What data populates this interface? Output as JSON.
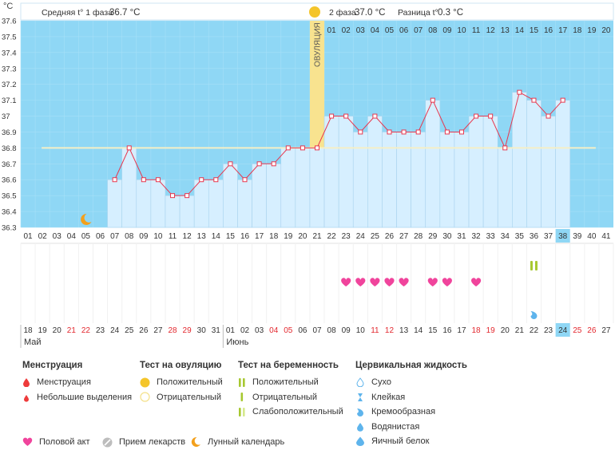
{
  "colors": {
    "plot_bg": "#8fd7f5",
    "bar_fill": "#d6efff",
    "bar_stroke": "#a9d3ee",
    "line": "#e8384f",
    "coverline": "#f5efc6",
    "ovulation_band": "#f8e38f",
    "highlight": "#8fd7f5",
    "weekend": "#e3282f",
    "heart": "#f0449c",
    "lh_positive": "#f4c52b",
    "preg_positive": "#a7c831",
    "preg_faint": "#d5e88c",
    "moon": "#f3a01c",
    "fluid": "#5eb4ec",
    "menstruation": "#ee3b3b"
  },
  "header": {
    "phase1_label": "Средняя t° 1 фаза",
    "phase1_value": "36.7 °C",
    "phase2_label": "2 фаза",
    "phase2_value": "37.0 °C",
    "diff_label": "Разница t°",
    "diff_value": "0.3 °C"
  },
  "chart_data": {
    "type": "line",
    "y_unit": "°C",
    "ylim": [
      36.3,
      37.6
    ],
    "y_ticks": [
      "37.6",
      "37.5",
      "37.4",
      "37.3",
      "37.2",
      "37.1",
      "37",
      "36.9",
      "36.8",
      "36.7",
      "36.6",
      "36.5",
      "36.4",
      "36.3"
    ],
    "coverline": 36.8,
    "ovulation_label": "ОВУЛЯЦИЯ",
    "ovulation_day": 21,
    "highlight_day": 38,
    "total_days": 41,
    "luteal_day_labels": [
      "01",
      "02",
      "03",
      "04",
      "05",
      "06",
      "07",
      "08",
      "09",
      "10",
      "11",
      "12",
      "13",
      "14",
      "15",
      "16",
      "17",
      "18",
      "19",
      "20"
    ],
    "cycle_day_labels": [
      "01",
      "02",
      "03",
      "04",
      "05",
      "06",
      "07",
      "08",
      "09",
      "10",
      "11",
      "12",
      "13",
      "14",
      "15",
      "16",
      "17",
      "18",
      "19",
      "20",
      "21",
      "22",
      "23",
      "24",
      "25",
      "26",
      "27",
      "28",
      "29",
      "30",
      "31",
      "32",
      "33",
      "34",
      "35",
      "36",
      "37",
      "38",
      "39",
      "40",
      "41"
    ],
    "calendar_days": [
      {
        "d": "18",
        "w": false
      },
      {
        "d": "19",
        "w": false
      },
      {
        "d": "20",
        "w": false
      },
      {
        "d": "21",
        "w": true
      },
      {
        "d": "22",
        "w": true
      },
      {
        "d": "23",
        "w": false
      },
      {
        "d": "24",
        "w": false
      },
      {
        "d": "25",
        "w": false
      },
      {
        "d": "26",
        "w": false
      },
      {
        "d": "27",
        "w": false
      },
      {
        "d": "28",
        "w": true
      },
      {
        "d": "29",
        "w": true
      },
      {
        "d": "30",
        "w": false
      },
      {
        "d": "31",
        "w": false
      },
      {
        "d": "01",
        "w": false
      },
      {
        "d": "02",
        "w": false
      },
      {
        "d": "03",
        "w": false
      },
      {
        "d": "04",
        "w": true
      },
      {
        "d": "05",
        "w": true
      },
      {
        "d": "06",
        "w": false
      },
      {
        "d": "07",
        "w": false
      },
      {
        "d": "08",
        "w": false
      },
      {
        "d": "09",
        "w": false
      },
      {
        "d": "10",
        "w": false
      },
      {
        "d": "11",
        "w": true
      },
      {
        "d": "12",
        "w": true
      },
      {
        "d": "13",
        "w": false
      },
      {
        "d": "14",
        "w": false
      },
      {
        "d": "15",
        "w": false
      },
      {
        "d": "16",
        "w": false
      },
      {
        "d": "17",
        "w": false
      },
      {
        "d": "18",
        "w": true
      },
      {
        "d": "19",
        "w": true
      },
      {
        "d": "20",
        "w": false
      },
      {
        "d": "21",
        "w": false
      },
      {
        "d": "22",
        "w": false
      },
      {
        "d": "23",
        "w": false
      },
      {
        "d": "24",
        "w": false
      },
      {
        "d": "25",
        "w": true
      },
      {
        "d": "26",
        "w": true
      },
      {
        "d": "27",
        "w": false
      }
    ],
    "month_labels": [
      {
        "label": "Май",
        "day": 1
      },
      {
        "label": "Июнь",
        "day": 15
      }
    ],
    "series": [
      {
        "x": [
          7,
          8,
          9,
          10,
          11,
          12,
          13,
          14,
          15,
          16,
          17,
          18,
          19,
          20,
          21,
          22,
          23,
          24,
          25,
          26,
          27,
          28,
          29,
          30,
          31,
          32,
          33,
          34,
          35,
          36,
          37,
          38
        ],
        "values": [
          36.6,
          36.8,
          36.6,
          36.6,
          36.5,
          36.5,
          36.6,
          36.6,
          36.7,
          36.6,
          36.7,
          36.7,
          36.8,
          36.8,
          36.8,
          37.0,
          37.0,
          36.9,
          37.0,
          36.9,
          36.9,
          36.9,
          37.1,
          36.9,
          36.9,
          37.0,
          37.0,
          36.8,
          37.15,
          37.1,
          37.0,
          37.1
        ]
      }
    ],
    "moon_day": 5,
    "intercourse_days": [
      23,
      24,
      25,
      26,
      27,
      29,
      30,
      32
    ],
    "pregnancy_test_positive_day": 36,
    "cervical_fluid_day": 36
  },
  "legend": {
    "menstruation": {
      "title": "Менструация",
      "items": [
        "Менструация",
        "Небольшие выделения"
      ]
    },
    "ovulation_test": {
      "title": "Тест на овуляцию",
      "items": [
        "Положительный",
        "Отрицательный"
      ]
    },
    "pregnancy_test": {
      "title": "Тест на беременность",
      "items": [
        "Положительный",
        "Отрицательный",
        "Слабоположительный"
      ]
    },
    "cervical_fluid": {
      "title": "Цервикальная жидкость",
      "items": [
        "Сухо",
        "Клейкая",
        "Кремообразная",
        "Водянистая",
        "Яичный белок"
      ]
    },
    "bottom": [
      "Половой акт",
      "Прием лекарств",
      "Лунный календарь"
    ]
  }
}
